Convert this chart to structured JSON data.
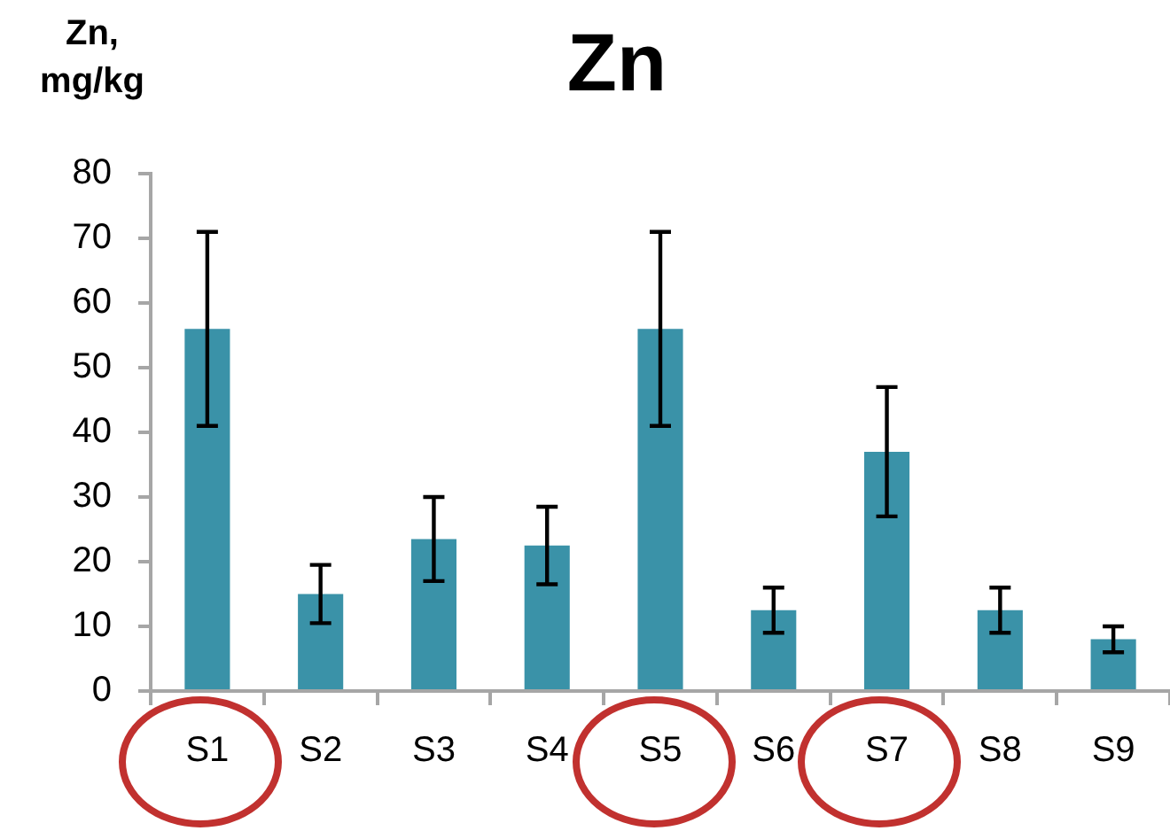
{
  "chart_data": {
    "type": "bar",
    "title": "Zn",
    "ylabel": "Zn, mg/kg",
    "categories": [
      "S1",
      "S2",
      "S3",
      "S4",
      "S5",
      "S6",
      "S7",
      "S8",
      "S9"
    ],
    "values": [
      56,
      15,
      23.5,
      22.5,
      56,
      12.5,
      37,
      12.5,
      8
    ],
    "errors": [
      15,
      4.5,
      6.5,
      6,
      15,
      3.5,
      10,
      3.5,
      2
    ],
    "color": "#3a92a8",
    "ylim": [
      0,
      80
    ],
    "yticks": [
      0,
      10,
      20,
      30,
      40,
      50,
      60,
      70,
      80
    ],
    "grid": false,
    "legend": false
  }
}
